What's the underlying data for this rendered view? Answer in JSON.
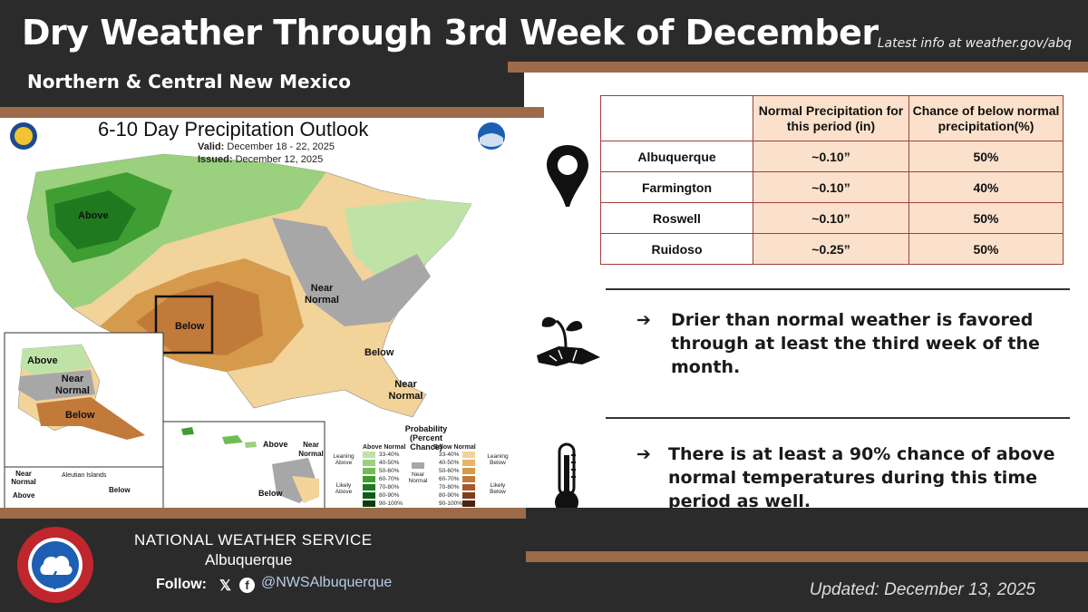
{
  "header": {
    "title": "Dry Weather Through 3rd Week of December",
    "latest_info": "Latest info at weather.gov/abq",
    "subtitle": "Northern & Central New Mexico"
  },
  "map": {
    "title": "6-10 Day Precipitation Outlook",
    "valid_label": "Valid:",
    "valid": "December 18 - 22, 2025",
    "issued_label": "Issued:",
    "issued": "December 12, 2025",
    "labels": {
      "above": "Above",
      "near_normal": "Near Normal",
      "below": "Below",
      "below_se": "Below",
      "near_normal_se": "Near Normal",
      "ak_above": "Above",
      "ak_near": "Near Normal",
      "ak_below": "Below",
      "hi_above": "Above",
      "hi_near": "Near Normal",
      "hi_below": "Below",
      "aleutian": "Aleutian Islands",
      "al_near": "Near Normal",
      "al_above": "Above",
      "al_below": "Below"
    },
    "legend": {
      "title": "Probability (Percent Chance)",
      "above_normal": "Above Normal",
      "below_normal": "Below Normal",
      "near_normal": "Near Normal",
      "leaning_above": "Leaning Above",
      "likely_above": "Likely Above",
      "leaning_below": "Leaning Below",
      "likely_below": "Likely Below",
      "ranges": [
        "33-40%",
        "40-50%",
        "50-60%",
        "60-70%",
        "70-80%",
        "80-90%",
        "90-100%"
      ],
      "green": [
        "#bfe3a7",
        "#9ad07e",
        "#6fbd53",
        "#3f9e32",
        "#1f7a1f",
        "#0f5c14",
        "#0a3f0c"
      ],
      "brown": [
        "#f2d39a",
        "#e6b46a",
        "#d59a4c",
        "#c27a3a",
        "#a55a2a",
        "#7d3e1c",
        "#4a2410"
      ]
    }
  },
  "table": {
    "col1_header": "Normal Precipitation for this period (in)",
    "col2_header": "Chance of below normal precipitation(%)",
    "rows": [
      {
        "city": "Albuquerque",
        "normal": "~0.10”",
        "chance": "50%"
      },
      {
        "city": "Farmington",
        "normal": "~0.10”",
        "chance": "40%"
      },
      {
        "city": "Roswell",
        "normal": "~0.10”",
        "chance": "50%"
      },
      {
        "city": "Ruidoso",
        "normal": "~0.25”",
        "chance": "50%"
      }
    ]
  },
  "bullets": {
    "arrow": "➔",
    "dry": "Drier than normal weather is favored through at least the third week of the month.",
    "temp": "There is at least a 90% chance of above normal temperatures during this time period as well."
  },
  "footer": {
    "org": "NATIONAL WEATHER SERVICE",
    "office": "Albuquerque",
    "follow": "Follow:",
    "x_glyph": "𝕏",
    "fb_glyph": "f",
    "handle": "@NWSAlbuquerque",
    "updated": "Updated: December 13, 2025"
  },
  "colors": {
    "bg_dark": "#2b2b2b",
    "accent_brown": "#9c6b4a",
    "table_fill": "#fbe1cb",
    "table_border": "#a0403a"
  }
}
